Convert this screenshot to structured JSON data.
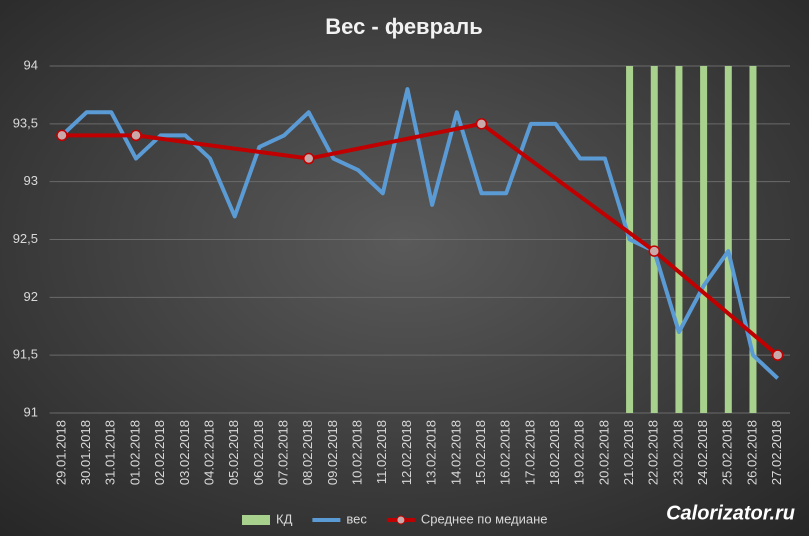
{
  "chart_data": {
    "type": "combo",
    "title": "Вес - февраль",
    "categories": [
      "29.01.2018",
      "30.01.2018",
      "31.01.2018",
      "01.02.2018",
      "02.02.2018",
      "03.02.2018",
      "04.02.2018",
      "05.02.2018",
      "06.02.2018",
      "07.02.2018",
      "08.02.2018",
      "09.02.2018",
      "10.02.2018",
      "11.02.2018",
      "12.02.2018",
      "13.02.2018",
      "14.02.2018",
      "15.02.2018",
      "16.02.2018",
      "17.02.2018",
      "18.02.2018",
      "19.02.2018",
      "20.02.2018",
      "21.02.2018",
      "22.02.2018",
      "23.02.2018",
      "24.02.2018",
      "25.02.2018",
      "26.02.2018",
      "27.02.2018"
    ],
    "series": [
      {
        "name": "КД",
        "type": "bar",
        "color": "#a9d18e",
        "values": [
          null,
          null,
          null,
          null,
          null,
          null,
          null,
          null,
          null,
          null,
          null,
          null,
          null,
          null,
          null,
          null,
          null,
          null,
          null,
          null,
          null,
          null,
          null,
          94,
          94,
          94,
          94,
          94,
          94,
          null
        ]
      },
      {
        "name": "вес",
        "type": "line",
        "color": "#5b9bd5",
        "values": [
          93.4,
          93.6,
          93.6,
          93.2,
          93.4,
          93.4,
          93.2,
          92.7,
          93.3,
          93.4,
          93.6,
          93.2,
          93.1,
          92.9,
          93.8,
          92.8,
          93.6,
          92.9,
          92.9,
          93.5,
          93.5,
          93.2,
          93.2,
          92.5,
          92.4,
          91.7,
          92.1,
          92.4,
          91.5,
          91.3
        ]
      },
      {
        "name": "Среднее по медиане",
        "type": "line-markers",
        "color": "#c00000",
        "values": [
          93.4,
          null,
          null,
          93.4,
          null,
          null,
          null,
          null,
          null,
          null,
          93.2,
          null,
          null,
          null,
          null,
          null,
          null,
          93.5,
          null,
          null,
          null,
          null,
          null,
          null,
          92.4,
          null,
          null,
          null,
          null,
          91.5
        ]
      }
    ],
    "ylim": [
      91,
      94
    ],
    "yticks": [
      91,
      {
        "value": 91.5,
        "label": "91,5"
      },
      92,
      {
        "value": 92.5,
        "label": "92,5"
      },
      93,
      {
        "value": 93.5,
        "label": "93,5"
      },
      94
    ],
    "grid": true,
    "legend": "bottom",
    "watermark": "Calorizator.ru"
  }
}
